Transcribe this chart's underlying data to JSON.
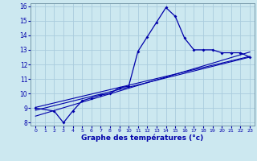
{
  "xlabel": "Graphe des températures (°c)",
  "background_color": "#cce8f0",
  "grid_color": "#aaccdd",
  "line_color": "#0000aa",
  "hours": [
    0,
    1,
    2,
    3,
    4,
    5,
    6,
    7,
    8,
    9,
    10,
    11,
    12,
    13,
    14,
    15,
    16,
    17,
    18,
    19,
    20,
    21,
    22,
    23
  ],
  "temps": [
    9.0,
    null,
    8.8,
    8.0,
    8.8,
    9.5,
    9.7,
    9.9,
    10.0,
    10.4,
    10.5,
    12.9,
    13.9,
    14.9,
    15.9,
    15.3,
    13.8,
    13.0,
    13.0,
    13.0,
    12.8,
    12.8,
    12.8,
    12.5
  ],
  "ylim": [
    7.8,
    16.2
  ],
  "xlim": [
    -0.5,
    23.5
  ],
  "yticks": [
    8,
    9,
    10,
    11,
    12,
    13,
    14,
    15,
    16
  ],
  "xticks": [
    0,
    1,
    2,
    3,
    4,
    5,
    6,
    7,
    8,
    9,
    10,
    11,
    12,
    13,
    14,
    15,
    16,
    17,
    18,
    19,
    20,
    21,
    22,
    23
  ],
  "reg_line1": [
    [
      0,
      9.05
    ],
    [
      23,
      12.55
    ]
  ],
  "reg_line2": [
    [
      0,
      8.45
    ],
    [
      23,
      12.85
    ]
  ],
  "reg_line3": [
    [
      0,
      8.85
    ],
    [
      23,
      12.5
    ]
  ]
}
